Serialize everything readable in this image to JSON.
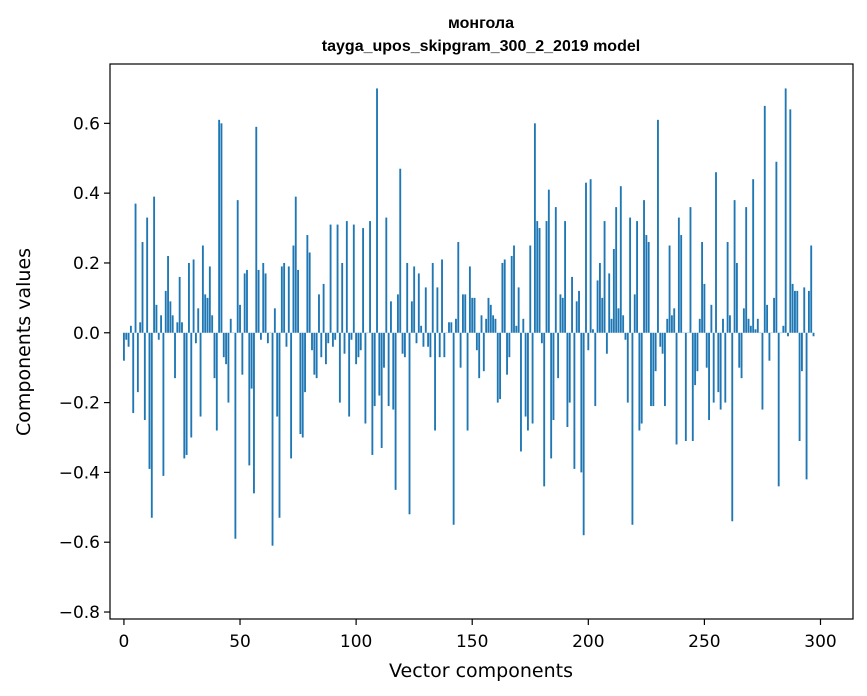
{
  "chart_data": {
    "type": "bar",
    "title": "монгола",
    "subtitle": "tayga_upos_skipgram_300_2_2019 model",
    "xlabel": "Vector components",
    "ylabel": "Components values",
    "xlim": [
      -6,
      314
    ],
    "ylim": [
      -0.82,
      0.77
    ],
    "x_ticks": [
      0,
      50,
      100,
      150,
      200,
      250,
      300
    ],
    "x_tick_labels": [
      "0",
      "50",
      "100",
      "150",
      "200",
      "250",
      "300"
    ],
    "y_ticks": [
      -0.8,
      -0.6,
      -0.4,
      -0.2,
      0.0,
      0.2,
      0.4,
      0.6
    ],
    "y_tick_labels": [
      "−0.8",
      "−0.6",
      "−0.4",
      "−0.2",
      "0.0",
      "0.2",
      "0.4",
      "0.6"
    ],
    "bar_color": "#1f77b4",
    "x": "indices 0..299",
    "values": [
      -0.08,
      -0.02,
      -0.04,
      0.02,
      -0.23,
      0.37,
      -0.17,
      0.03,
      0.26,
      -0.25,
      0.33,
      -0.39,
      -0.53,
      0.39,
      0.08,
      -0.02,
      0.05,
      -0.41,
      0.12,
      0.22,
      0.09,
      0.05,
      -0.13,
      0.03,
      0.16,
      0.03,
      -0.36,
      -0.35,
      0.2,
      -0.3,
      0.21,
      -0.03,
      0.07,
      -0.24,
      0.25,
      0.11,
      0.1,
      0.19,
      0.05,
      -0.13,
      -0.28,
      0.61,
      0.6,
      -0.07,
      -0.09,
      -0.2,
      0.04,
      0.0,
      -0.59,
      0.38,
      0.08,
      -0.12,
      0.17,
      0.18,
      -0.38,
      -0.16,
      -0.46,
      0.59,
      0.18,
      -0.02,
      0.2,
      0.17,
      -0.03,
      0.0,
      -0.61,
      0.07,
      -0.24,
      -0.53,
      0.19,
      0.2,
      -0.04,
      0.19,
      -0.36,
      0.25,
      0.39,
      0.18,
      -0.29,
      -0.3,
      -0.17,
      0.28,
      0.23,
      -0.05,
      -0.12,
      -0.13,
      0.11,
      -0.07,
      0.14,
      -0.09,
      -0.03,
      0.31,
      -0.04,
      -0.02,
      0.31,
      -0.2,
      0.2,
      -0.06,
      0.32,
      -0.24,
      -0.02,
      0.31,
      -0.09,
      -0.07,
      -0.05,
      0.3,
      -0.26,
      0.0,
      0.32,
      -0.35,
      -0.21,
      0.7,
      -0.18,
      -0.33,
      -0.1,
      0.33,
      -0.21,
      0.09,
      -0.22,
      -0.45,
      0.11,
      0.47,
      -0.06,
      -0.07,
      0.2,
      -0.52,
      0.09,
      0.19,
      -0.03,
      0.17,
      0.02,
      -0.04,
      0.13,
      -0.04,
      -0.07,
      0.2,
      -0.28,
      0.13,
      -0.07,
      0.21,
      -0.07,
      0.0,
      0.03,
      0.03,
      -0.55,
      0.04,
      0.26,
      -0.1,
      0.11,
      0.11,
      -0.28,
      0.19,
      0.1,
      0.1,
      -0.05,
      -0.13,
      0.05,
      -0.11,
      0.04,
      0.1,
      0.08,
      0.05,
      0.04,
      -0.2,
      -0.19,
      0.2,
      0.21,
      -0.12,
      -0.07,
      0.22,
      0.25,
      0.02,
      0.13,
      -0.34,
      0.04,
      -0.24,
      -0.28,
      0.25,
      -0.26,
      0.6,
      0.32,
      0.3,
      -0.03,
      -0.44,
      0.32,
      0.41,
      -0.36,
      -0.25,
      0.36,
      -0.13,
      0.11,
      0.1,
      0.32,
      -0.27,
      -0.2,
      0.16,
      -0.39,
      0.09,
      0.12,
      -0.4,
      -0.58,
      0.43,
      -0.05,
      0.44,
      0.01,
      -0.21,
      0.15,
      0.2,
      0.1,
      0.32,
      -0.06,
      0.17,
      0.04,
      0.24,
      0.36,
      0.07,
      0.42,
      0.05,
      -0.02,
      -0.2,
      0.33,
      -0.55,
      0.11,
      0.32,
      -0.28,
      -0.26,
      0.38,
      0.28,
      0.26,
      -0.21,
      -0.21,
      -0.11,
      0.61,
      -0.04,
      -0.06,
      -0.21,
      0.04,
      0.25,
      0.05,
      0.07,
      -0.32,
      0.33,
      0.28,
      0.0,
      -0.31,
      0.0,
      0.36,
      -0.31,
      -0.15,
      -0.11,
      0.04,
      0.26,
      0.14,
      -0.1,
      -0.25,
      0.08,
      -0.2,
      0.46,
      -0.17,
      -0.22,
      0.04,
      -0.2,
      0.26,
      0.05,
      -0.54,
      0.38,
      0.2,
      -0.1,
      -0.13,
      0.07,
      0.36,
      0.04,
      0.02,
      0.44,
      0.01,
      0.04,
      0.0,
      -0.22,
      0.65,
      0.08,
      -0.08,
      0.0,
      0.1,
      0.49,
      -0.44,
      0.0,
      0.02,
      0.7,
      -0.01,
      0.64,
      0.14,
      0.12,
      0.12,
      -0.31,
      -0.11,
      0.13,
      -0.42,
      0.12,
      0.25,
      -0.01
    ]
  }
}
